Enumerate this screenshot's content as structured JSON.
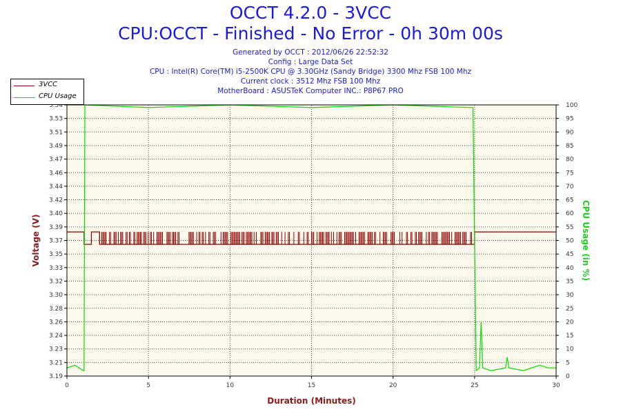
{
  "header": {
    "title": "OCCT 4.2.0 - 3VCC",
    "subtitle": "CPU:OCCT - Finished - No Error - 0h 30m 00s",
    "info_lines": [
      "Generated by OCCT : 2012/06/26 22:52:32",
      "Config : Large Data Set",
      "CPU : Intel(R) Core(TM) i5-2500K CPU @ 3.30GHz (Sandy Bridge) 3300 Mhz FSB 100 Mhz",
      "Current clock : 3512 Mhz FSB 100 Mhz",
      "MotherBoard : ASUSTeK Computer INC.: P8P67 PRO"
    ]
  },
  "legend": [
    {
      "label": "3VCC",
      "color": "#8b0000"
    },
    {
      "label": "CPU Usage",
      "color": "#00dd00"
    }
  ],
  "chart_data": {
    "type": "line",
    "xlabel": "Duration (Minutes)",
    "ylabel_left": "Voltage (V)",
    "ylabel_right": "CPU Usage (in %)",
    "xlim": [
      0,
      30
    ],
    "x_ticks": [
      "0",
      "5",
      "10",
      "15",
      "20",
      "25",
      "30"
    ],
    "ylim_left": [
      3.19,
      3.54
    ],
    "y_left_ticks": [
      "3.19",
      "3.21",
      "3.23",
      "3.24",
      "3.26",
      "3.28",
      "3.30",
      "3.32",
      "3.33",
      "3.35",
      "3.37",
      "3.39",
      "3.40",
      "3.42",
      "3.44",
      "3.46",
      "3.47",
      "3.49",
      "3.51",
      "3.53",
      "3.54"
    ],
    "ylim_right": [
      0,
      100
    ],
    "y_right_ticks": [
      "0",
      "5",
      "10",
      "15",
      "20",
      "25",
      "30",
      "35",
      "40",
      "45",
      "50",
      "55",
      "60",
      "65",
      "70",
      "75",
      "80",
      "85",
      "90",
      "95",
      "100"
    ],
    "grid": true,
    "legend_position": "top-left",
    "series": [
      {
        "name": "3VCC",
        "axis": "left",
        "color": "#8b0000",
        "x": [
          0,
          1.05,
          1.05,
          1.5,
          1.5,
          2.0,
          2.0,
          25.0,
          25.0,
          30
        ],
        "y": [
          3.376,
          3.376,
          3.36,
          3.36,
          3.376,
          3.376,
          3.36,
          3.36,
          3.376,
          3.376
        ]
      },
      {
        "name": "CPU Usage",
        "axis": "right",
        "color": "#00dd00",
        "x": [
          0,
          0.5,
          1.0,
          1.05,
          1.1,
          5,
          10,
          15,
          20,
          24.9,
          25.0,
          25.1,
          25.3,
          25.4,
          25.5,
          26.0,
          26.9,
          27.0,
          27.1,
          28.0,
          29.0,
          29.5,
          30
        ],
        "y": [
          3,
          4,
          2,
          2,
          100,
          99,
          100,
          99,
          100,
          99,
          50,
          2,
          3,
          20,
          3,
          2,
          3,
          7,
          3,
          2,
          4,
          3,
          3
        ]
      }
    ]
  }
}
